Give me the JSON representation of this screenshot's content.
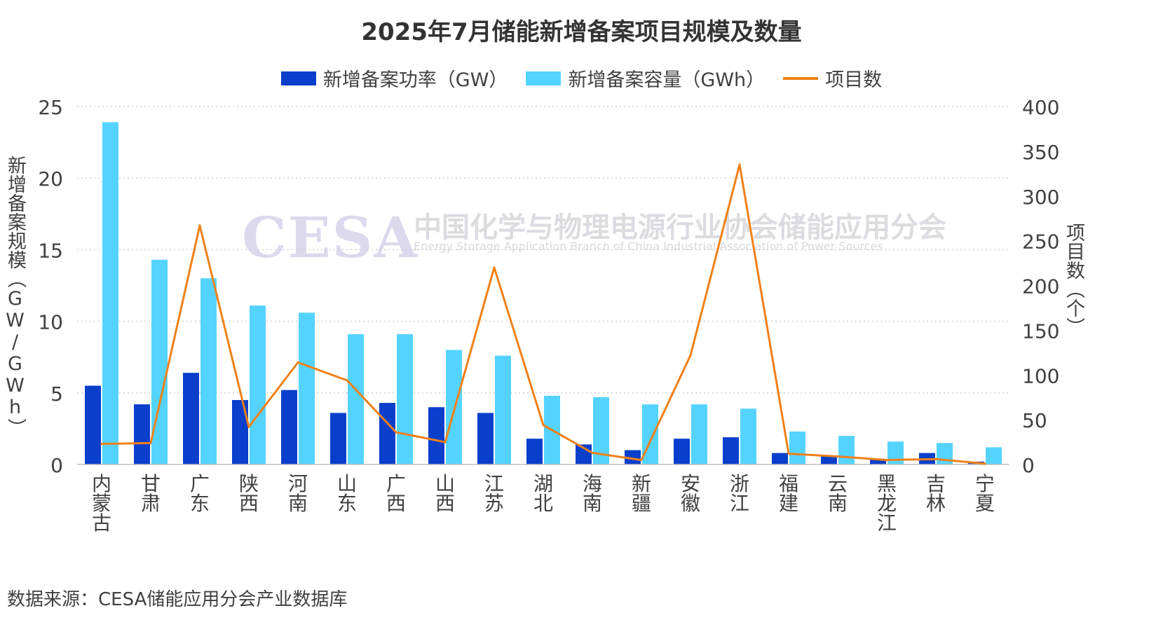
{
  "chart_data": {
    "type": "bar",
    "title": "2025年7月储能新增备案项目规模及数量",
    "categories": [
      "内蒙古",
      "甘肃",
      "广东",
      "陕西",
      "河南",
      "山东",
      "广西",
      "山西",
      "江苏",
      "湖北",
      "海南",
      "新疆",
      "安徽",
      "浙江",
      "福建",
      "云南",
      "黑龙江",
      "吉林",
      "宁夏"
    ],
    "series": [
      {
        "name": "新增备案功率（GW）",
        "type": "bar",
        "axis": "left",
        "color": "#0a3fcc",
        "values": [
          5.5,
          4.2,
          6.4,
          4.5,
          5.2,
          3.6,
          4.3,
          4.0,
          3.6,
          1.8,
          1.4,
          1.0,
          1.8,
          1.9,
          0.8,
          0.6,
          0.4,
          0.8,
          0.2
        ]
      },
      {
        "name": "新增备案容量（GWh）",
        "type": "bar",
        "axis": "left",
        "color": "#55d3ff",
        "values": [
          23.9,
          14.3,
          13.0,
          11.1,
          10.6,
          9.1,
          9.1,
          8.0,
          7.6,
          4.8,
          4.7,
          4.2,
          4.2,
          3.9,
          2.3,
          2.0,
          1.6,
          1.5,
          1.2
        ]
      },
      {
        "name": "项目数",
        "type": "line",
        "axis": "right",
        "color": "#f08018",
        "values": [
          23,
          24,
          267,
          42,
          114,
          94,
          36,
          25,
          220,
          44,
          13,
          5,
          122,
          335,
          12,
          9,
          5,
          6,
          1
        ]
      }
    ],
    "ylabel": "新增备案规模（GW/GWh）",
    "y2label": "项目数（个）",
    "ylim": [
      0,
      25
    ],
    "y2lim": [
      0,
      400
    ],
    "yticks": [
      "0",
      "5",
      "10",
      "15",
      "20",
      "25"
    ],
    "y2ticks": [
      "0",
      "50",
      "100",
      "150",
      "200",
      "250",
      "300",
      "350",
      "400"
    ],
    "grid": true,
    "legend_position": "top"
  },
  "watermark": {
    "logo": "CESA",
    "cn": "中国化学与物理电源行业协会储能应用分会",
    "en": "Energy Storage Application Branch of China Industrial Association of Power Sources"
  },
  "source": "数据来源：CESA储能应用分会产业数据库"
}
